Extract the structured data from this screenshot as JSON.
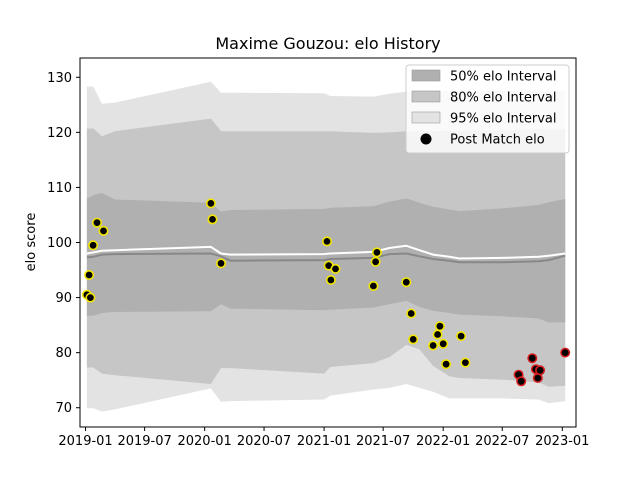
{
  "chart_data": {
    "type": "scatter",
    "title": "Maxime Gouzou: elo History",
    "xlabel": "",
    "ylabel": "elo score",
    "x_ticks": [
      "2019-01",
      "2019-07",
      "2020-01",
      "2020-07",
      "2021-01",
      "2021-07",
      "2022-01",
      "2022-07",
      "2023-01"
    ],
    "y_ticks": [
      70,
      80,
      90,
      100,
      110,
      120,
      130
    ],
    "xlim": [
      "2018-12-15",
      "2023-02-12"
    ],
    "ylim": [
      66.5,
      133.5
    ],
    "legend_position": "upper-right",
    "legend": [
      {
        "label": "50% elo Interval",
        "color": "#b0b0b0",
        "kind": "patch"
      },
      {
        "label": "80% elo Interval",
        "color": "#c6c6c6",
        "kind": "patch"
      },
      {
        "label": "95% elo Interval",
        "color": "#e3e3e3",
        "kind": "patch"
      },
      {
        "label": "Post Match elo",
        "color": "#000000",
        "kind": "marker"
      }
    ],
    "bands": {
      "x": [
        "2019-01-05",
        "2019-01-25",
        "2019-02-20",
        "2019-04-01",
        "2020-01-20",
        "2020-02-20",
        "2020-03-20",
        "2021-01-01",
        "2021-01-20",
        "2021-06-01",
        "2021-07-20",
        "2021-09-10",
        "2021-10-20",
        "2021-12-01",
        "2022-01-20",
        "2022-02-20",
        "2022-07-01",
        "2022-10-20",
        "2022-11-20",
        "2023-01-10"
      ],
      "mean": [
        97.3,
        97.4,
        97.8,
        97.9,
        98.0,
        97.5,
        96.7,
        96.8,
        97.0,
        97.2,
        97.9,
        98.0,
        97.5,
        97.0,
        96.7,
        96.4,
        96.4,
        96.6,
        96.8,
        97.6
      ],
      "mean_upper_line": [
        98.0,
        98.2,
        98.5,
        98.6,
        99.2,
        98.0,
        97.8,
        97.9,
        98.0,
        98.3,
        99.0,
        99.4,
        98.6,
        97.8,
        97.4,
        97.1,
        97.2,
        97.4,
        97.6,
        98.0
      ],
      "p50_low": [
        108.0,
        108.6,
        109.0,
        107.8,
        107.2,
        105.6,
        105.9,
        106.1,
        106.3,
        106.6,
        107.4,
        108.0,
        107.2,
        106.5,
        106.0,
        105.7,
        106.2,
        106.8,
        107.3,
        107.9
      ],
      "p50_high_is_upper": true,
      "p50_bottom": [
        86.7,
        86.7,
        87.2,
        87.4,
        87.5,
        88.8,
        88.0,
        87.7,
        87.8,
        88.2,
        88.8,
        89.4,
        88.3,
        87.6,
        87.2,
        86.9,
        86.6,
        86.2,
        85.5,
        85.5
      ],
      "p80_top": [
        120.7,
        120.7,
        119.3,
        120.2,
        122.5,
        120.2,
        120.2,
        120.2,
        120.2,
        119.9,
        120.0,
        120.2,
        120.2,
        120.2,
        120.3,
        120.3,
        120.3,
        120.6,
        120.5,
        120.6
      ],
      "p80_bottom": [
        77.3,
        77.3,
        76.2,
        75.9,
        74.3,
        77.2,
        77.2,
        76.2,
        77.4,
        78.1,
        79.2,
        81.4,
        80.6,
        77.6,
        75.7,
        75.4,
        75.1,
        74.6,
        73.8,
        74.0
      ],
      "p95_top": [
        128.3,
        128.3,
        125.2,
        125.4,
        129.2,
        127.2,
        127.2,
        127.1,
        126.6,
        126.5,
        127.0,
        127.4,
        127.1,
        127.4,
        127.5,
        127.6,
        127.5,
        127.5,
        127.3,
        127.6
      ],
      "p95_bottom": [
        69.9,
        69.9,
        69.3,
        69.7,
        73.5,
        71.1,
        71.2,
        71.5,
        72.2,
        73.3,
        73.6,
        74.3,
        73.6,
        72.9,
        71.7,
        71.7,
        71.7,
        71.5,
        70.8,
        71.2
      ]
    },
    "points": [
      {
        "x": "2019-01-05",
        "y": 90.5,
        "edge": "yellow"
      },
      {
        "x": "2019-01-12",
        "y": 94.1,
        "edge": "yellow"
      },
      {
        "x": "2019-01-16",
        "y": 90.0,
        "edge": "yellow"
      },
      {
        "x": "2019-01-24",
        "y": 99.5,
        "edge": "yellow"
      },
      {
        "x": "2019-02-05",
        "y": 103.6,
        "edge": "yellow"
      },
      {
        "x": "2019-02-25",
        "y": 102.1,
        "edge": "yellow"
      },
      {
        "x": "2020-01-20",
        "y": 107.1,
        "edge": "yellow"
      },
      {
        "x": "2020-01-25",
        "y": 104.2,
        "edge": "yellow"
      },
      {
        "x": "2020-02-20",
        "y": 96.2,
        "edge": "yellow"
      },
      {
        "x": "2021-01-10",
        "y": 100.2,
        "edge": "yellow"
      },
      {
        "x": "2021-01-15",
        "y": 95.8,
        "edge": "yellow"
      },
      {
        "x": "2021-01-22",
        "y": 93.2,
        "edge": "yellow"
      },
      {
        "x": "2021-02-05",
        "y": 95.2,
        "edge": "yellow"
      },
      {
        "x": "2021-06-01",
        "y": 92.1,
        "edge": "yellow"
      },
      {
        "x": "2021-06-08",
        "y": 96.5,
        "edge": "yellow"
      },
      {
        "x": "2021-06-12",
        "y": 98.2,
        "edge": "yellow"
      },
      {
        "x": "2021-09-10",
        "y": 92.8,
        "edge": "yellow"
      },
      {
        "x": "2021-09-25",
        "y": 87.1,
        "edge": "yellow"
      },
      {
        "x": "2021-10-01",
        "y": 82.4,
        "edge": "yellow"
      },
      {
        "x": "2021-12-01",
        "y": 81.3,
        "edge": "yellow"
      },
      {
        "x": "2021-12-15",
        "y": 83.3,
        "edge": "yellow"
      },
      {
        "x": "2021-12-22",
        "y": 84.8,
        "edge": "yellow"
      },
      {
        "x": "2022-01-01",
        "y": 81.6,
        "edge": "yellow"
      },
      {
        "x": "2022-01-10",
        "y": 77.9,
        "edge": "yellow"
      },
      {
        "x": "2022-02-25",
        "y": 83.0,
        "edge": "yellow"
      },
      {
        "x": "2022-03-10",
        "y": 78.2,
        "edge": "yellow"
      },
      {
        "x": "2022-08-20",
        "y": 76.0,
        "edge": "red"
      },
      {
        "x": "2022-08-28",
        "y": 74.8,
        "edge": "red"
      },
      {
        "x": "2022-10-01",
        "y": 79.0,
        "edge": "red"
      },
      {
        "x": "2022-10-12",
        "y": 77.0,
        "edge": "red"
      },
      {
        "x": "2022-10-18",
        "y": 75.4,
        "edge": "red"
      },
      {
        "x": "2022-10-25",
        "y": 76.8,
        "edge": "red"
      },
      {
        "x": "2023-01-10",
        "y": 80.0,
        "edge": "red"
      }
    ]
  }
}
